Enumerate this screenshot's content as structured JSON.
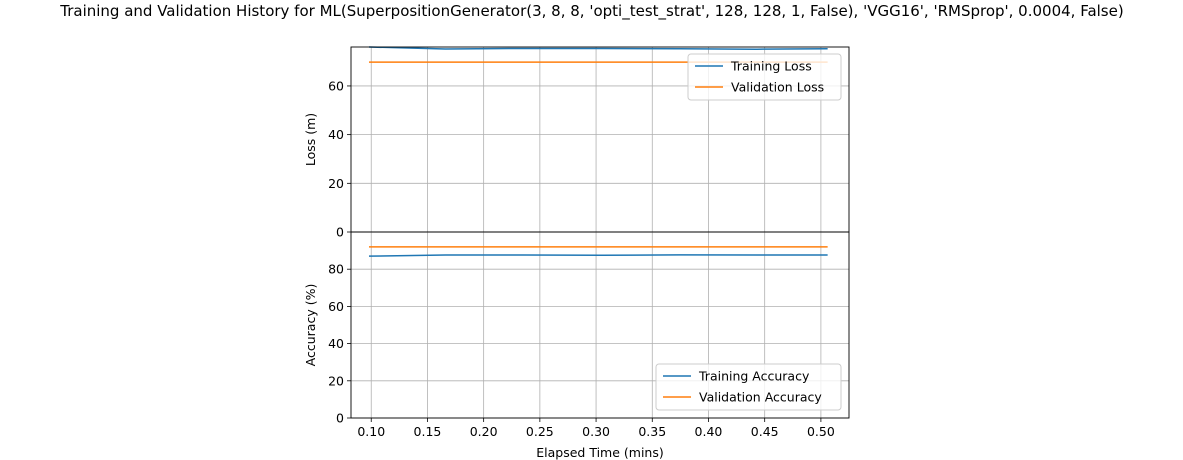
{
  "chart_data": {
    "title": "Training and Validation History for ML(SuperpositionGenerator(3, 8, 8, 'opti_test_strat', 128, 128, 1, False), 'VGG16', 'RMSprop', 0.0004, False)",
    "xlabel": "Elapsed Time (mins)",
    "x_ticks": [
      "0.10",
      "0.15",
      "0.20",
      "0.25",
      "0.30",
      "0.35",
      "0.40",
      "0.45",
      "0.50"
    ],
    "xlim": [
      0.082,
      0.525
    ],
    "grid": true,
    "colors": {
      "training": "#1f77b4",
      "validation": "#ff7f0e"
    },
    "panels": [
      {
        "type": "line",
        "ylabel": "Loss (m)",
        "ylim": [
          0,
          76
        ],
        "y_ticks": [
          "0",
          "20",
          "40",
          "60"
        ],
        "legend_position": "top-right",
        "series": [
          {
            "name": "Training Loss",
            "color": "#1f77b4",
            "x": [
              0.098,
              0.166,
              0.236,
              0.305,
              0.374,
              0.443,
              0.506
            ],
            "y": [
              76.0,
              75.2,
              75.4,
              75.4,
              75.3,
              75.1,
              75.3
            ]
          },
          {
            "name": "Validation Loss",
            "color": "#ff7f0e",
            "x": [
              0.098,
              0.166,
              0.236,
              0.305,
              0.374,
              0.443,
              0.506
            ],
            "y": [
              69.8,
              69.8,
              69.8,
              69.8,
              69.8,
              69.8,
              69.8
            ]
          }
        ]
      },
      {
        "type": "line",
        "ylabel": "Accuracy (%)",
        "ylim": [
          0,
          100
        ],
        "y_ticks": [
          "0",
          "20",
          "40",
          "60",
          "80"
        ],
        "legend_position": "bottom-right",
        "series": [
          {
            "name": "Training Accuracy",
            "color": "#1f77b4",
            "x": [
              0.098,
              0.166,
              0.236,
              0.305,
              0.374,
              0.443,
              0.506
            ],
            "y": [
              87.0,
              87.6,
              87.6,
              87.5,
              87.7,
              87.6,
              87.6
            ]
          },
          {
            "name": "Validation Accuracy",
            "color": "#ff7f0e",
            "x": [
              0.098,
              0.166,
              0.236,
              0.305,
              0.374,
              0.443,
              0.506
            ],
            "y": [
              92.0,
              92.0,
              92.0,
              92.0,
              92.0,
              92.0,
              92.0
            ]
          }
        ]
      }
    ]
  }
}
